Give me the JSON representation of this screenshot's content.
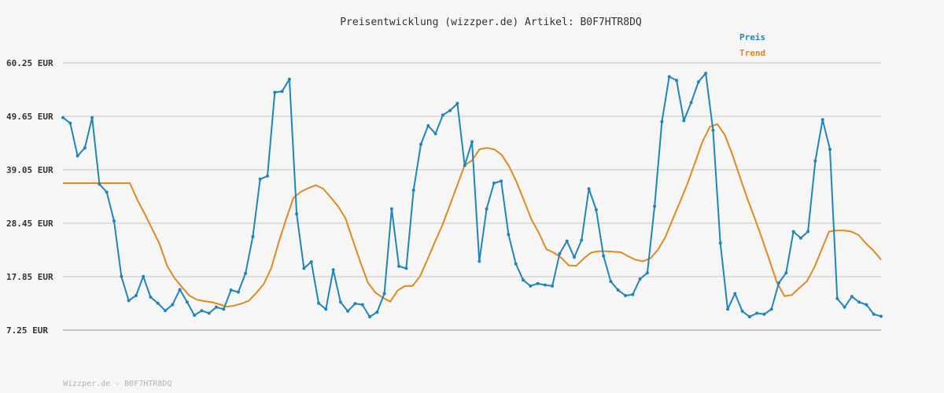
{
  "chart_data": {
    "type": "line",
    "title": "Preisentwicklung (wizzper.de) Artikel: B0F7HTR8DQ",
    "xlabel": "",
    "ylabel": "",
    "ylim": [
      7.25,
      60.25
    ],
    "y_ticks": [
      "60.25 EUR",
      "49.65 EUR",
      "39.05 EUR",
      "28.45 EUR",
      "17.85 EUR",
      "7.25 EUR"
    ],
    "grid": true,
    "legend_position": "top-right",
    "footer": "Wizzper.de - B0F7HTR8DQ",
    "series": [
      {
        "name": "Preis",
        "color": "#1f86bb",
        "values": [
          49.4,
          48.3,
          41.8,
          43.4,
          49.4,
          36.2,
          34.6,
          28.9,
          17.9,
          13.1,
          14.1,
          17.9,
          13.8,
          12.6,
          11.1,
          12.3,
          15.3,
          12.8,
          10.2,
          11.1,
          10.6,
          11.8,
          11.4,
          15.2,
          14.8,
          18.5,
          25.8,
          37.2,
          37.8,
          54.4,
          54.6,
          57.0,
          30.3,
          19.5,
          20.8,
          12.6,
          11.4,
          19.2,
          12.8,
          11.0,
          12.5,
          12.3,
          9.9,
          10.8,
          14.5,
          31.3,
          19.9,
          19.5,
          35.0,
          44.1,
          47.8,
          46.2,
          49.9,
          50.8,
          52.2,
          39.9,
          44.6,
          20.9,
          31.3,
          36.4,
          36.8,
          26.2,
          20.4,
          17.2,
          16.0,
          16.5,
          16.2,
          16.0,
          22.4,
          24.9,
          21.7,
          25.1,
          35.3,
          31.1,
          22.0,
          16.9,
          15.2,
          14.1,
          14.3,
          17.4,
          18.6,
          31.8,
          48.6,
          57.5,
          56.8,
          48.8,
          52.4,
          56.5,
          58.2,
          46.9,
          24.5,
          11.4,
          14.5,
          11.0,
          9.9,
          10.6,
          10.4,
          11.4,
          16.6,
          18.6,
          26.8,
          25.5,
          26.8,
          40.8,
          49.0,
          43.1,
          13.5,
          11.8,
          13.9,
          12.8,
          12.3,
          10.4,
          10.0
        ]
      },
      {
        "name": "Trend",
        "color": "#de8a1f",
        "values": [
          36.4,
          36.4,
          36.4,
          36.4,
          36.4,
          36.4,
          36.4,
          36.4,
          36.4,
          36.4,
          33.1,
          30.3,
          27.3,
          24.3,
          20.0,
          17.6,
          15.8,
          14.1,
          13.3,
          13.0,
          12.8,
          12.4,
          11.9,
          12.1,
          12.5,
          13.1,
          14.6,
          16.4,
          19.5,
          24.6,
          29.2,
          33.5,
          34.7,
          35.4,
          36.0,
          35.3,
          33.6,
          31.8,
          29.4,
          25.0,
          20.7,
          16.7,
          14.7,
          13.7,
          12.9,
          15.1,
          16.0,
          16.0,
          17.9,
          21.2,
          24.7,
          28.0,
          31.9,
          35.9,
          39.9,
          40.9,
          43.1,
          43.4,
          43.1,
          42.0,
          39.7,
          36.6,
          32.9,
          29.2,
          26.5,
          23.3,
          22.6,
          21.6,
          20.1,
          20.0,
          21.4,
          22.6,
          22.9,
          22.9,
          22.8,
          22.7,
          21.9,
          21.2,
          20.9,
          21.5,
          23.2,
          25.7,
          29.3,
          32.8,
          36.4,
          40.5,
          44.7,
          47.6,
          48.1,
          45.9,
          42.1,
          37.7,
          33.4,
          29.5,
          25.4,
          21.1,
          16.7,
          14.0,
          14.2,
          15.6,
          16.9,
          19.6,
          23.2,
          26.8,
          27.0,
          27.0,
          26.8,
          26.1,
          24.4,
          23.0,
          21.2
        ]
      }
    ]
  }
}
